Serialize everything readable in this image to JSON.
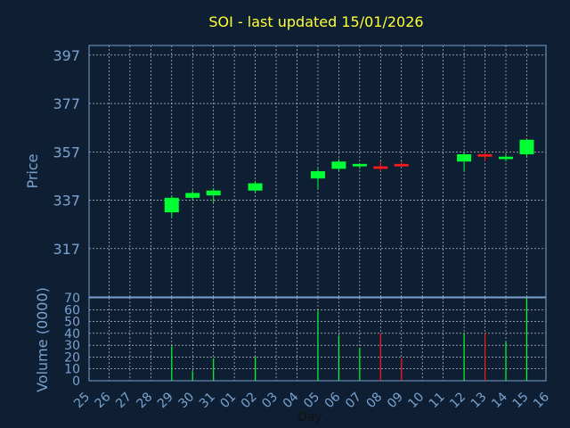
{
  "chart_data": {
    "type": "candlestick",
    "title": "SOI - last updated 15/01/2026",
    "xlabel": "Day",
    "price_ylabel": "Price",
    "volume_ylabel": "Volume (0000)",
    "x_ticks": [
      "25",
      "26",
      "27",
      "28",
      "29",
      "30",
      "31",
      "01",
      "02",
      "03",
      "04",
      "05",
      "06",
      "07",
      "08",
      "09",
      "10",
      "11",
      "12",
      "13",
      "14",
      "15",
      "16"
    ],
    "price_ylim": [
      297,
      401
    ],
    "price_yticks": [
      317,
      337,
      357,
      377,
      397
    ],
    "volume_ylim": [
      0,
      70
    ],
    "volume_yticks": [
      0,
      10,
      20,
      30,
      40,
      50,
      60,
      70
    ],
    "grid": true,
    "colors": {
      "background": "#0f1f33",
      "up": "#00ff33",
      "down": "#ff1a1a",
      "title": "#ffff33",
      "axis": "#7aa2cf",
      "grid": "#ffffff"
    },
    "candles": [
      {
        "day": "29",
        "open": 332,
        "high": 339,
        "low": 330,
        "close": 338,
        "volume": 29
      },
      {
        "day": "30",
        "open": 338,
        "high": 341,
        "low": 337,
        "close": 340,
        "volume": 8
      },
      {
        "day": "31",
        "open": 339,
        "high": 342,
        "low": 336,
        "close": 341,
        "volume": 19
      },
      {
        "day": "02",
        "open": 341,
        "high": 345,
        "low": 340,
        "close": 344,
        "volume": 20
      },
      {
        "day": "05",
        "open": 346,
        "high": 350,
        "low": 342,
        "close": 349,
        "volume": 59
      },
      {
        "day": "06",
        "open": 350,
        "high": 354,
        "low": 349,
        "close": 353,
        "volume": 38
      },
      {
        "day": "07",
        "open": 351,
        "high": 352,
        "low": 350,
        "close": 352,
        "volume": 28
      },
      {
        "day": "08",
        "open": 351,
        "high": 353,
        "low": 349,
        "close": 350,
        "volume": 40
      },
      {
        "day": "09",
        "open": 352,
        "high": 353,
        "low": 351,
        "close": 351,
        "volume": 19
      },
      {
        "day": "12",
        "open": 353,
        "high": 357,
        "low": 349,
        "close": 356,
        "volume": 40
      },
      {
        "day": "13",
        "open": 356,
        "high": 357,
        "low": 353,
        "close": 355,
        "volume": 40
      },
      {
        "day": "14",
        "open": 354,
        "high": 356,
        "low": 353,
        "close": 355,
        "volume": 33
      },
      {
        "day": "15",
        "open": 356,
        "high": 362,
        "low": 355,
        "close": 362,
        "volume": 70
      }
    ]
  }
}
